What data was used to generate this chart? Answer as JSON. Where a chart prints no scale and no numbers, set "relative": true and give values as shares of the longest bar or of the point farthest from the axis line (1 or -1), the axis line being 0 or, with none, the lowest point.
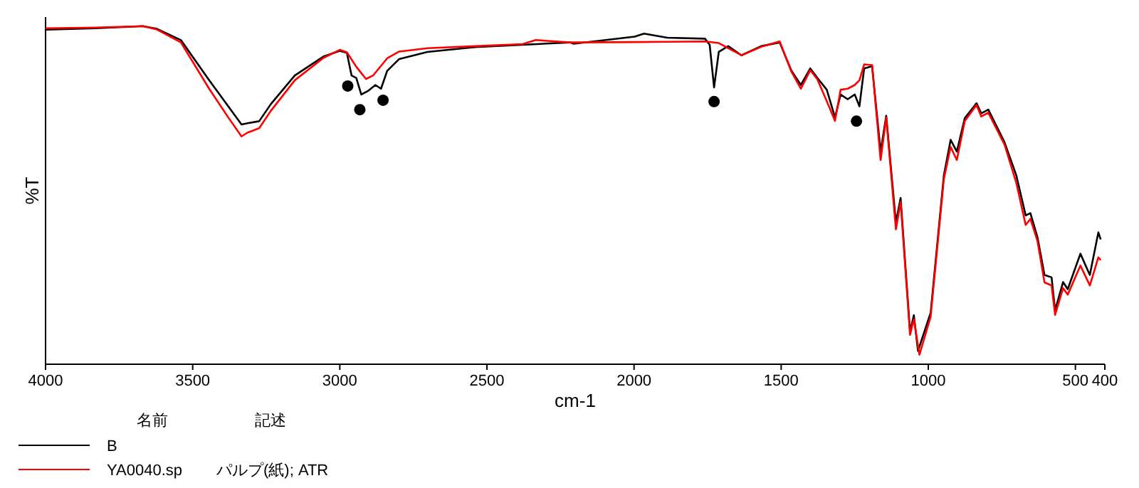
{
  "chart_data": {
    "type": "line",
    "xlabel": "cm-1",
    "ylabel": "%T",
    "relative": true,
    "xlim": [
      4000,
      400
    ],
    "xticks": [
      4000,
      3500,
      3000,
      2500,
      2000,
      1500,
      1000,
      500,
      400
    ],
    "grid": false,
    "legend": "bottom left",
    "legend_title": "名前",
    "marker": "none",
    "line_style": "solid",
    "annotations": [
      "記述",
      "パルプ(紙); ATR"
    ],
    "series": [
      {
        "name": "B",
        "color": "#000000",
        "x": [
          4000,
          3831,
          3669,
          3621,
          3540,
          3444,
          3379,
          3334,
          3314,
          3274,
          3234,
          3153,
          3056,
          3000,
          2976,
          2960,
          2944,
          2927,
          2903,
          2879,
          2860,
          2839,
          2798,
          2702,
          2540,
          2379,
          2218,
          2205,
          1998,
          1966,
          1887,
          1759,
          1743,
          1728,
          1712,
          1680,
          1635,
          1568,
          1505,
          1465,
          1433,
          1401,
          1377,
          1345,
          1317,
          1298,
          1274,
          1250,
          1234,
          1218,
          1191,
          1162,
          1143,
          1110,
          1094,
          1062,
          1049,
          1035,
          992,
          947,
          924,
          903,
          876,
          836,
          820,
          796,
          741,
          701,
          669,
          653,
          629,
          605,
          581,
          569,
          542,
          526,
          483,
          451,
          422,
          414
        ],
        "values": [
          0.99,
          0.994,
          1,
          0.992,
          0.959,
          0.84,
          0.763,
          0.709,
          0.713,
          0.719,
          0.77,
          0.854,
          0.91,
          0.927,
          0.921,
          0.854,
          0.847,
          0.798,
          0.809,
          0.826,
          0.815,
          0.868,
          0.903,
          0.924,
          0.938,
          0.945,
          0.952,
          0.948,
          0.969,
          0.978,
          0.966,
          0.963,
          0.945,
          0.819,
          0.924,
          0.941,
          0.914,
          0.941,
          0.952,
          0.868,
          0.826,
          0.875,
          0.847,
          0.812,
          0.73,
          0.798,
          0.784,
          0.798,
          0.763,
          0.875,
          0.882,
          0.629,
          0.735,
          0.419,
          0.492,
          0.096,
          0.145,
          0.039,
          0.152,
          0.559,
          0.664,
          0.629,
          0.728,
          0.772,
          0.742,
          0.753,
          0.657,
          0.559,
          0.44,
          0.447,
          0.376,
          0.264,
          0.257,
          0.159,
          0.243,
          0.222,
          0.327,
          0.264,
          0.39,
          0.369
        ]
      },
      {
        "name": "YA0040.sp",
        "color": "#ff0000",
        "x": [
          4000,
          3831,
          3669,
          3621,
          3540,
          3444,
          3379,
          3334,
          3314,
          3274,
          3234,
          3153,
          3056,
          3000,
          2976,
          2944,
          2911,
          2887,
          2839,
          2798,
          2702,
          2540,
          2379,
          2334,
          2218,
          2205,
          1998,
          1887,
          1759,
          1712,
          1635,
          1568,
          1505,
          1465,
          1433,
          1401,
          1377,
          1345,
          1317,
          1298,
          1274,
          1250,
          1234,
          1218,
          1191,
          1162,
          1143,
          1110,
          1094,
          1062,
          1049,
          1030,
          992,
          947,
          924,
          903,
          876,
          836,
          820,
          796,
          741,
          701,
          669,
          653,
          629,
          605,
          581,
          569,
          542,
          526,
          483,
          451,
          422,
          414
        ],
        "values": [
          0.994,
          0.996,
          1,
          0.99,
          0.952,
          0.815,
          0.73,
          0.674,
          0.685,
          0.698,
          0.75,
          0.84,
          0.906,
          0.93,
          0.923,
          0.88,
          0.844,
          0.854,
          0.905,
          0.925,
          0.935,
          0.941,
          0.947,
          0.959,
          0.952,
          0.952,
          0.953,
          0.954,
          0.955,
          0.95,
          0.914,
          0.939,
          0.955,
          0.865,
          0.815,
          0.87,
          0.843,
          0.778,
          0.72,
          0.812,
          0.815,
          0.826,
          0.84,
          0.887,
          0.885,
          0.604,
          0.73,
          0.399,
          0.48,
          0.087,
          0.133,
          0.028,
          0.14,
          0.548,
          0.643,
          0.604,
          0.719,
          0.767,
          0.733,
          0.744,
          0.65,
          0.537,
          0.412,
          0.43,
          0.365,
          0.242,
          0.233,
          0.146,
          0.225,
          0.206,
          0.292,
          0.233,
          0.316,
          0.308
        ]
      },
      {
        "type": "scatter",
        "marker": "circle",
        "color": "#000000",
        "x": [
          2973,
          2932,
          2853,
          1728,
          1244
        ],
        "values": [
          0.823,
          0.753,
          0.781,
          0.777,
          0.719
        ]
      }
    ]
  }
}
